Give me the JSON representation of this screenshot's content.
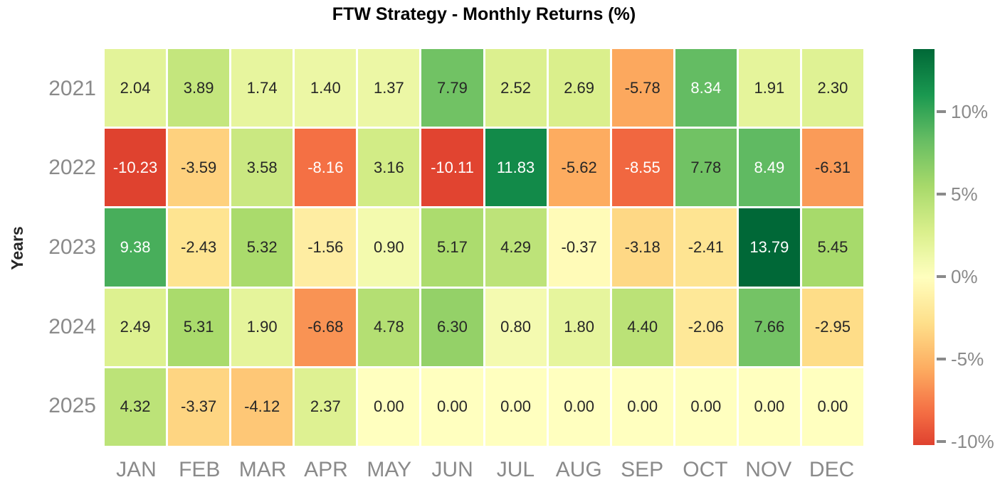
{
  "chart_data": {
    "type": "heatmap",
    "title": "FTW Strategy - Monthly Returns (%)",
    "xlabel": "",
    "ylabel": "Years",
    "columns": [
      "JAN",
      "FEB",
      "MAR",
      "APR",
      "MAY",
      "JUN",
      "JUL",
      "AUG",
      "SEP",
      "OCT",
      "NOV",
      "DEC"
    ],
    "rows": [
      "2021",
      "2022",
      "2023",
      "2024",
      "2025"
    ],
    "values": [
      [
        2.04,
        3.89,
        1.74,
        1.4,
        1.37,
        7.79,
        2.52,
        2.69,
        -5.78,
        8.34,
        1.91,
        2.3
      ],
      [
        -10.23,
        -3.59,
        3.58,
        -8.16,
        3.16,
        -10.11,
        11.83,
        -5.62,
        -8.55,
        7.78,
        8.49,
        -6.31
      ],
      [
        9.38,
        -2.43,
        5.32,
        -1.56,
        0.9,
        5.17,
        4.29,
        -0.37,
        -3.18,
        -2.41,
        13.79,
        5.45
      ],
      [
        2.49,
        5.31,
        1.9,
        -6.68,
        4.78,
        6.3,
        0.8,
        1.8,
        4.4,
        -2.06,
        7.66,
        -2.95
      ],
      [
        4.32,
        -3.37,
        -4.12,
        2.37,
        0.0,
        0.0,
        0.0,
        0.0,
        0.0,
        0.0,
        0.0,
        0.0
      ]
    ],
    "annot_decimals": 2,
    "vmin": -10.23,
    "vmax": 13.79,
    "center": 0,
    "colormap": "RdYlGn",
    "colormap_anchors": [
      "#a50026",
      "#d73027",
      "#f46d43",
      "#fdae61",
      "#fee08b",
      "#ffffbf",
      "#d9ef8b",
      "#a6d96a",
      "#66bd63",
      "#1a9850",
      "#006837"
    ],
    "colorbar_ticks": [
      {
        "value": 10,
        "label": "10%"
      },
      {
        "value": 5,
        "label": "5%"
      },
      {
        "value": 0,
        "label": "0%"
      },
      {
        "value": -5,
        "label": "-5%"
      },
      {
        "value": -10,
        "label": "-10%"
      }
    ],
    "legend_position": "right",
    "grid": false,
    "colors": {
      "background": "#ffffff",
      "cell_gap": "#ffffff",
      "tick_label": "#8a8a8a",
      "annot_dark": "#262626",
      "annot_light": "#ffffff",
      "title": "#000000",
      "axis_label": "#262626"
    }
  }
}
